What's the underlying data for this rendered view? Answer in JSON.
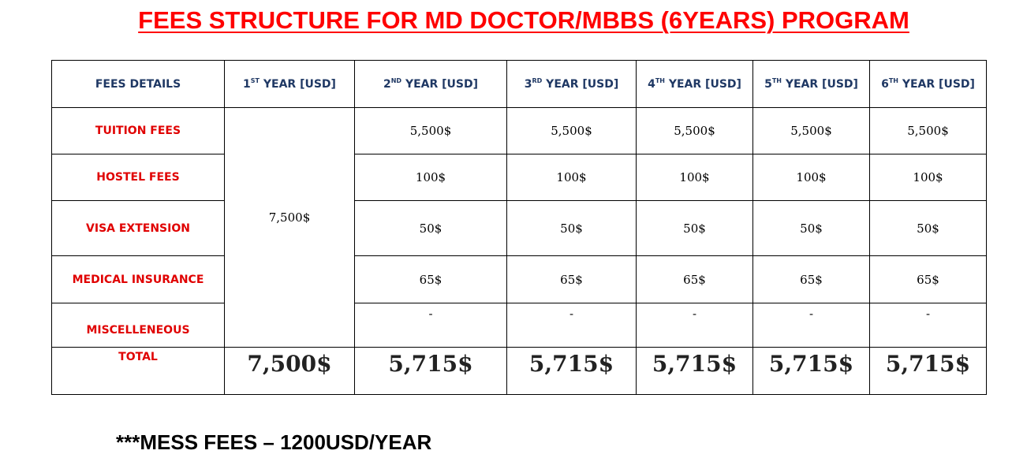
{
  "title": "FEES STRUCTURE FOR MD DOCTOR/MBBS (6YEARS) PROGRAM",
  "table": {
    "headers": [
      {
        "pre": "FEES DETAILS",
        "sup": "",
        "post": ""
      },
      {
        "pre": "1",
        "sup": "ST",
        "post": " YEAR [USD]"
      },
      {
        "pre": "2",
        "sup": "ND",
        "post": " YEAR [USD]"
      },
      {
        "pre": "3",
        "sup": "RD",
        "post": " YEAR [USD]"
      },
      {
        "pre": "4",
        "sup": "TH",
        "post": " YEAR [USD]"
      },
      {
        "pre": "5",
        "sup": "TH",
        "post": " YEAR [USD]"
      },
      {
        "pre": "6",
        "sup": "TH",
        "post": " YEAR [USD]"
      }
    ],
    "first_year_combined": "7,500$",
    "rows": [
      {
        "label": "TUITION FEES",
        "values": [
          "5,500$",
          "5,500$",
          "5,500$",
          "5,500$",
          "5,500$"
        ]
      },
      {
        "label": "HOSTEL FEES",
        "values": [
          "100$",
          "100$",
          "100$",
          "100$",
          "100$"
        ]
      },
      {
        "label": "VISA EXTENSION",
        "values": [
          "50$",
          "50$",
          "50$",
          "50$",
          "50$"
        ]
      },
      {
        "label": "MEDICAL INSURANCE",
        "values": [
          "65$",
          "65$",
          "65$",
          "65$",
          "65$"
        ]
      },
      {
        "label": "MISCELLENEOUS",
        "values": [
          "-",
          "-",
          "-",
          "-",
          "-"
        ]
      }
    ],
    "total": {
      "label": "TOTAL",
      "values": [
        "7,500$",
        "5,715$",
        "5,715$",
        "5,715$",
        "5,715$",
        "5,715$"
      ]
    }
  },
  "note": "***MESS FEES – 1200USD/YEAR",
  "colors": {
    "title": "#ff0000",
    "header_text": "#1f3864",
    "row_label": "#e00000"
  }
}
